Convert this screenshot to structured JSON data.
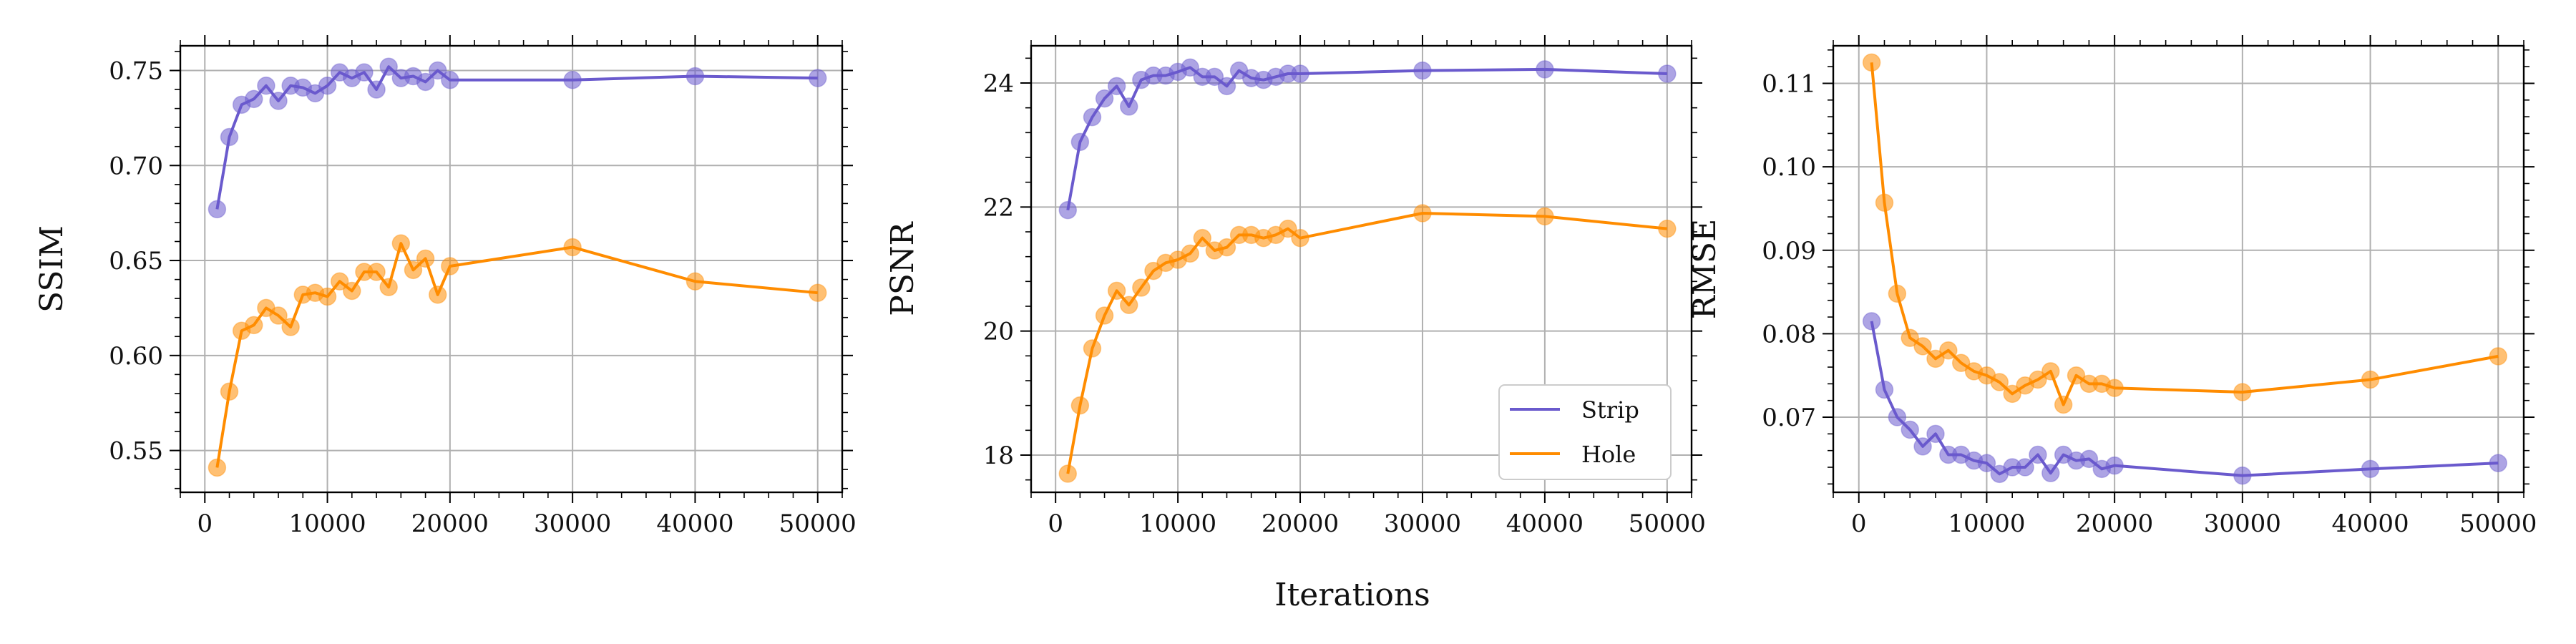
{
  "figure": {
    "xlabel": "Iterations"
  },
  "legend": {
    "items": [
      {
        "label": "Strip",
        "color": "#6a5acd"
      },
      {
        "label": "Hole",
        "color": "#ff8c00"
      }
    ],
    "location": "lower-right of PSNR panel"
  },
  "chart_data": [
    {
      "type": "line",
      "ylabel": "SSIM",
      "xlim": [
        -2000,
        52000
      ],
      "ylim": [
        0.528,
        0.763
      ],
      "x_ticks": [
        0,
        10000,
        20000,
        30000,
        40000,
        50000
      ],
      "y_ticks": [
        0.55,
        0.6,
        0.65,
        0.7,
        0.75
      ],
      "y_tick_labels": [
        "0.55",
        "0.60",
        "0.65",
        "0.70",
        "0.75"
      ],
      "grid": true,
      "x": [
        1000,
        2000,
        3000,
        4000,
        5000,
        6000,
        7000,
        8000,
        9000,
        10000,
        11000,
        12000,
        13000,
        14000,
        15000,
        16000,
        17000,
        18000,
        19000,
        20000,
        30000,
        40000,
        50000
      ],
      "series": [
        {
          "name": "Strip",
          "color": "#6a5acd",
          "values": [
            0.677,
            0.715,
            0.732,
            0.735,
            0.742,
            0.734,
            0.742,
            0.741,
            0.738,
            0.742,
            0.749,
            0.746,
            0.749,
            0.74,
            0.752,
            0.746,
            0.747,
            0.744,
            0.75,
            0.745,
            0.745,
            0.747,
            0.746
          ]
        },
        {
          "name": "Hole",
          "color": "#ff8c00",
          "values": [
            0.541,
            0.581,
            0.613,
            0.616,
            0.625,
            0.621,
            0.615,
            0.632,
            0.633,
            0.631,
            0.639,
            0.634,
            0.644,
            0.644,
            0.636,
            0.659,
            0.645,
            0.651,
            0.632,
            0.647,
            0.657,
            0.639,
            0.633
          ]
        }
      ]
    },
    {
      "type": "line",
      "ylabel": "PSNR",
      "xlim": [
        -2000,
        52000
      ],
      "ylim": [
        17.4,
        24.6
      ],
      "x_ticks": [
        0,
        10000,
        20000,
        30000,
        40000,
        50000
      ],
      "y_ticks": [
        18,
        20,
        22,
        24
      ],
      "y_tick_labels": [
        "18",
        "20",
        "22",
        "24"
      ],
      "grid": true,
      "x": [
        1000,
        2000,
        3000,
        4000,
        5000,
        6000,
        7000,
        8000,
        9000,
        10000,
        11000,
        12000,
        13000,
        14000,
        15000,
        16000,
        17000,
        18000,
        19000,
        20000,
        30000,
        40000,
        50000
      ],
      "series": [
        {
          "name": "Strip",
          "color": "#6a5acd",
          "values": [
            21.95,
            23.05,
            23.45,
            23.75,
            23.95,
            23.62,
            24.05,
            24.12,
            24.12,
            24.18,
            24.25,
            24.1,
            24.1,
            23.95,
            24.2,
            24.08,
            24.05,
            24.1,
            24.15,
            24.15,
            24.2,
            24.22,
            24.15
          ]
        },
        {
          "name": "Hole",
          "color": "#ff8c00",
          "values": [
            17.7,
            18.8,
            19.72,
            20.25,
            20.65,
            20.42,
            20.7,
            20.97,
            21.1,
            21.15,
            21.25,
            21.5,
            21.3,
            21.35,
            21.55,
            21.55,
            21.5,
            21.55,
            21.65,
            21.5,
            21.9,
            21.85,
            21.65
          ]
        }
      ]
    },
    {
      "type": "line",
      "ylabel": "RMSE",
      "xlim": [
        -2000,
        52000
      ],
      "ylim": [
        0.061,
        0.1145
      ],
      "x_ticks": [
        0,
        10000,
        20000,
        30000,
        40000,
        50000
      ],
      "y_ticks": [
        0.07,
        0.08,
        0.09,
        0.1,
        0.11
      ],
      "y_tick_labels": [
        "0.07",
        "0.08",
        "0.09",
        "0.10",
        "0.11"
      ],
      "grid": true,
      "x": [
        1000,
        2000,
        3000,
        4000,
        5000,
        6000,
        7000,
        8000,
        9000,
        10000,
        11000,
        12000,
        13000,
        14000,
        15000,
        16000,
        17000,
        18000,
        19000,
        20000,
        30000,
        40000,
        50000
      ],
      "series": [
        {
          "name": "Strip",
          "color": "#6a5acd",
          "values": [
            0.0815,
            0.0733,
            0.07,
            0.0685,
            0.0665,
            0.068,
            0.0655,
            0.0655,
            0.0648,
            0.0645,
            0.0632,
            0.064,
            0.064,
            0.0655,
            0.0633,
            0.0655,
            0.0648,
            0.065,
            0.0638,
            0.0642,
            0.063,
            0.0638,
            0.0645
          ]
        },
        {
          "name": "Hole",
          "color": "#ff8c00",
          "values": [
            0.1125,
            0.0957,
            0.0848,
            0.0795,
            0.0785,
            0.077,
            0.078,
            0.0765,
            0.0755,
            0.075,
            0.0742,
            0.0728,
            0.0738,
            0.0745,
            0.0755,
            0.0715,
            0.075,
            0.074,
            0.074,
            0.0735,
            0.073,
            0.0745,
            0.0773
          ]
        }
      ]
    }
  ]
}
